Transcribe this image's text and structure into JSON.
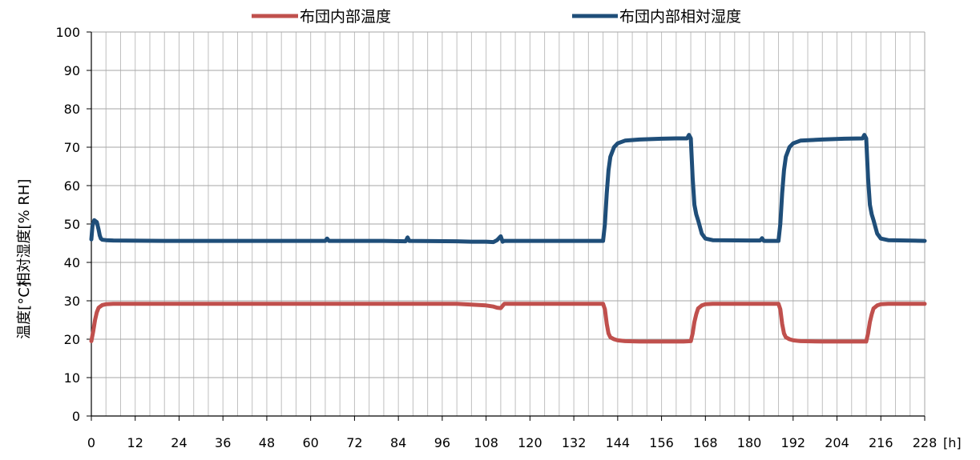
{
  "chart_data": {
    "type": "line",
    "legend_position": "top",
    "grid": true,
    "ylabel_humidity": "相対湿度[% RH]",
    "ylabel_temperature": "温度[°C]",
    "x_unit": "[h]",
    "xlim": [
      0,
      228
    ],
    "ylim": [
      0,
      100
    ],
    "x_ticks": [
      0,
      12,
      24,
      36,
      48,
      60,
      72,
      84,
      96,
      108,
      120,
      132,
      144,
      156,
      168,
      180,
      192,
      204,
      216,
      228
    ],
    "y_ticks": [
      0,
      10,
      20,
      30,
      40,
      50,
      60,
      70,
      80,
      90,
      100
    ],
    "series": [
      {
        "name": "布団内部温度",
        "color": "#c0504d",
        "x": [
          0,
          0.5,
          1,
          1.5,
          2,
          3,
          4,
          6,
          10,
          20,
          40,
          60,
          80,
          100,
          104,
          108,
          110,
          111,
          112,
          113,
          120,
          130,
          140,
          140.5,
          141,
          141.5,
          142,
          143,
          144,
          146,
          150,
          156,
          162,
          164,
          164.5,
          165,
          165.5,
          166,
          167,
          168,
          170,
          180,
          188,
          188.5,
          189,
          189.5,
          190,
          191,
          192,
          194,
          200,
          206,
          212,
          212.5,
          213,
          213.5,
          214,
          215,
          216,
          218,
          228
        ],
        "values": [
          19.5,
          22,
          25,
          27,
          28.2,
          28.9,
          29.1,
          29.2,
          29.2,
          29.2,
          29.2,
          29.2,
          29.2,
          29.2,
          29.0,
          28.8,
          28.5,
          28.2,
          28.1,
          29.2,
          29.2,
          29.2,
          29.2,
          27.8,
          24.0,
          21.5,
          20.5,
          20.0,
          19.7,
          19.5,
          19.4,
          19.4,
          19.4,
          19.5,
          21.5,
          24.5,
          26.5,
          28.0,
          28.8,
          29.1,
          29.2,
          29.2,
          29.2,
          27.8,
          24.0,
          21.5,
          20.5,
          20.0,
          19.7,
          19.5,
          19.4,
          19.4,
          19.4,
          21.5,
          24.5,
          26.5,
          28.0,
          28.8,
          29.1,
          29.2,
          29.2
        ]
      },
      {
        "name": "布団内部相対湿度",
        "color": "#1f4e79",
        "x": [
          0,
          0.3,
          0.8,
          1.5,
          2,
          2.3,
          2.6,
          3,
          4,
          6,
          20,
          40,
          60,
          64,
          64.5,
          65,
          80,
          86,
          86.5,
          87,
          100,
          104,
          108,
          110,
          111,
          112,
          112.5,
          113,
          120,
          130,
          140,
          140.5,
          141,
          141.5,
          142,
          143,
          144,
          146,
          150,
          156,
          160,
          163,
          163.5,
          164,
          164.5,
          165,
          165.5,
          166,
          167,
          168,
          170,
          180,
          183,
          183.5,
          184,
          188,
          188.5,
          189,
          189.5,
          190,
          191,
          192,
          194,
          200,
          206,
          211,
          211.5,
          212,
          212.5,
          213,
          213.5,
          214,
          215,
          216,
          218,
          228
        ],
        "values": [
          46,
          49.5,
          51,
          50.5,
          48.5,
          47,
          46.2,
          45.9,
          45.8,
          45.7,
          45.6,
          45.6,
          45.6,
          45.6,
          46.2,
          45.6,
          45.6,
          45.5,
          46.5,
          45.6,
          45.5,
          45.4,
          45.4,
          45.3,
          45.8,
          46.8,
          45.4,
          45.6,
          45.6,
          45.6,
          45.6,
          50,
          58,
          64,
          67.5,
          70,
          71,
          71.7,
          72,
          72.2,
          72.3,
          72.3,
          73.2,
          72.3,
          62,
          55,
          52.5,
          51,
          47.5,
          46.2,
          45.8,
          45.7,
          45.7,
          46.3,
          45.6,
          45.6,
          50,
          58,
          64,
          67.5,
          70,
          71,
          71.7,
          72,
          72.2,
          72.3,
          73.2,
          72.3,
          62,
          55,
          52.5,
          51,
          47.5,
          46.2,
          45.8,
          45.6
        ]
      }
    ]
  }
}
